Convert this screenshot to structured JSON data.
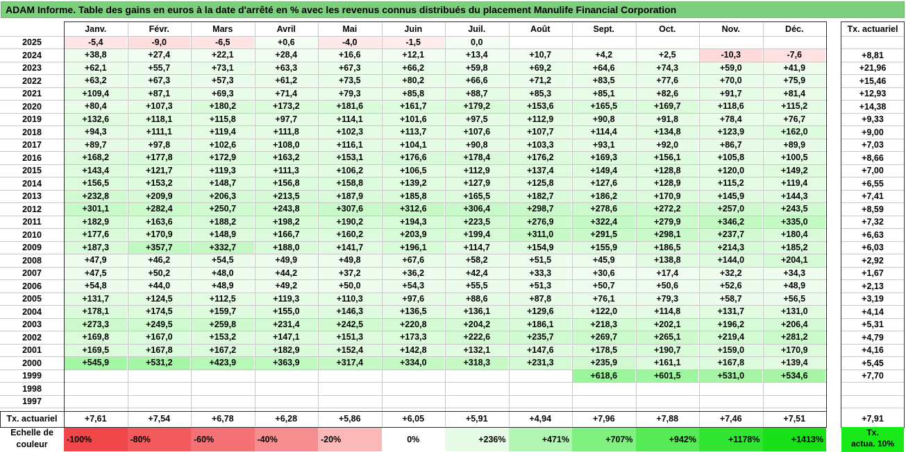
{
  "title": "ADAM Informe. Table des gains en euros à la date d'arrêté en % avec les revenus connus distribués du placement Manulife Financial Corporation",
  "chart_data": {
    "type": "table",
    "months": [
      "Janv.",
      "Févr.",
      "Mars",
      "Avril",
      "Mai",
      "Juin",
      "Juil.",
      "Août",
      "Sept.",
      "Oct.",
      "Nov.",
      "Déc."
    ],
    "rate_header": "Tx. actuariel",
    "rows": [
      {
        "year": "2025",
        "values": [
          "-5,4",
          "-9,0",
          "-6,5",
          "+0,6",
          "-4,0",
          "-1,5",
          "0,0",
          "",
          "",
          "",
          "",
          ""
        ],
        "rate": ""
      },
      {
        "year": "2024",
        "values": [
          "+38,8",
          "+27,4",
          "+22,1",
          "+28,4",
          "+16,6",
          "+12,1",
          "+13,4",
          "+10,7",
          "+4,2",
          "+2,5",
          "-10,3",
          "-7,6"
        ],
        "rate": "+8,81"
      },
      {
        "year": "2023",
        "values": [
          "+62,1",
          "+55,7",
          "+73,1",
          "+63,3",
          "+67,3",
          "+66,2",
          "+59,8",
          "+69,2",
          "+64,6",
          "+74,3",
          "+59,0",
          "+41,9"
        ],
        "rate": "+21,96"
      },
      {
        "year": "2022",
        "values": [
          "+63,2",
          "+67,3",
          "+57,3",
          "+61,2",
          "+73,5",
          "+80,2",
          "+66,6",
          "+71,2",
          "+83,5",
          "+77,6",
          "+70,0",
          "+75,9"
        ],
        "rate": "+15,46"
      },
      {
        "year": "2021",
        "values": [
          "+109,4",
          "+87,1",
          "+69,3",
          "+71,4",
          "+79,3",
          "+85,8",
          "+88,7",
          "+85,3",
          "+85,1",
          "+82,6",
          "+91,7",
          "+81,4"
        ],
        "rate": "+12,93"
      },
      {
        "year": "2020",
        "values": [
          "+80,4",
          "+107,3",
          "+180,2",
          "+173,2",
          "+181,6",
          "+161,7",
          "+179,2",
          "+153,6",
          "+165,5",
          "+169,7",
          "+118,6",
          "+115,2"
        ],
        "rate": "+14,38"
      },
      {
        "year": "2019",
        "values": [
          "+132,6",
          "+118,1",
          "+115,8",
          "+97,7",
          "+114,1",
          "+101,6",
          "+97,5",
          "+112,9",
          "+90,8",
          "+91,8",
          "+78,4",
          "+76,7"
        ],
        "rate": "+9,33"
      },
      {
        "year": "2018",
        "values": [
          "+94,3",
          "+111,1",
          "+119,4",
          "+111,8",
          "+102,3",
          "+113,7",
          "+107,6",
          "+107,7",
          "+114,4",
          "+134,8",
          "+123,9",
          "+162,0"
        ],
        "rate": "+9,00"
      },
      {
        "year": "2017",
        "values": [
          "+89,7",
          "+97,8",
          "+102,6",
          "+108,0",
          "+116,1",
          "+104,1",
          "+90,8",
          "+103,3",
          "+93,1",
          "+92,0",
          "+86,7",
          "+89,9"
        ],
        "rate": "+7,03"
      },
      {
        "year": "2016",
        "values": [
          "+168,2",
          "+177,8",
          "+172,9",
          "+163,2",
          "+153,1",
          "+176,6",
          "+178,4",
          "+176,2",
          "+169,3",
          "+156,1",
          "+105,8",
          "+100,5"
        ],
        "rate": "+8,66"
      },
      {
        "year": "2015",
        "values": [
          "+143,4",
          "+121,7",
          "+119,3",
          "+111,3",
          "+106,2",
          "+106,5",
          "+112,9",
          "+137,4",
          "+149,4",
          "+128,8",
          "+120,0",
          "+149,2"
        ],
        "rate": "+7,00"
      },
      {
        "year": "2014",
        "values": [
          "+156,5",
          "+153,2",
          "+148,7",
          "+156,8",
          "+158,8",
          "+139,2",
          "+127,9",
          "+125,8",
          "+127,6",
          "+128,9",
          "+115,2",
          "+119,4"
        ],
        "rate": "+6,55"
      },
      {
        "year": "2013",
        "values": [
          "+232,8",
          "+209,9",
          "+206,3",
          "+213,5",
          "+187,9",
          "+185,8",
          "+165,5",
          "+182,7",
          "+186,2",
          "+170,9",
          "+145,9",
          "+144,3"
        ],
        "rate": "+7,41"
      },
      {
        "year": "2012",
        "values": [
          "+301,1",
          "+282,4",
          "+250,7",
          "+243,8",
          "+307,6",
          "+312,6",
          "+306,4",
          "+298,7",
          "+278,6",
          "+272,2",
          "+257,0",
          "+243,5"
        ],
        "rate": "+8,59"
      },
      {
        "year": "2011",
        "values": [
          "+182,9",
          "+163,6",
          "+188,2",
          "+198,2",
          "+190,2",
          "+194,3",
          "+223,5",
          "+276,9",
          "+322,4",
          "+279,9",
          "+346,2",
          "+335,0"
        ],
        "rate": "+7,32"
      },
      {
        "year": "2010",
        "values": [
          "+177,6",
          "+170,9",
          "+148,9",
          "+166,7",
          "+160,2",
          "+203,9",
          "+199,4",
          "+311,0",
          "+291,5",
          "+298,1",
          "+237,7",
          "+180,4"
        ],
        "rate": "+6,63"
      },
      {
        "year": "2009",
        "values": [
          "+187,3",
          "+357,7",
          "+332,7",
          "+188,0",
          "+141,7",
          "+196,1",
          "+114,7",
          "+154,9",
          "+155,9",
          "+186,5",
          "+214,3",
          "+185,2"
        ],
        "rate": "+6,03"
      },
      {
        "year": "2008",
        "values": [
          "+47,9",
          "+46,2",
          "+54,5",
          "+49,9",
          "+49,8",
          "+67,6",
          "+58,2",
          "+51,5",
          "+45,9",
          "+138,8",
          "+144,0",
          "+204,1"
        ],
        "rate": "+2,92"
      },
      {
        "year": "2007",
        "values": [
          "+47,5",
          "+50,2",
          "+48,0",
          "+44,2",
          "+37,2",
          "+36,2",
          "+42,4",
          "+33,3",
          "+30,6",
          "+17,4",
          "+32,2",
          "+34,3"
        ],
        "rate": "+1,67"
      },
      {
        "year": "2006",
        "values": [
          "+54,8",
          "+44,0",
          "+48,9",
          "+49,2",
          "+50,0",
          "+54,3",
          "+55,5",
          "+51,3",
          "+50,7",
          "+50,6",
          "+52,6",
          "+48,9"
        ],
        "rate": "+2,13"
      },
      {
        "year": "2005",
        "values": [
          "+131,7",
          "+124,5",
          "+112,5",
          "+119,3",
          "+110,3",
          "+97,6",
          "+88,6",
          "+87,8",
          "+76,1",
          "+79,3",
          "+58,7",
          "+56,5"
        ],
        "rate": "+3,19"
      },
      {
        "year": "2004",
        "values": [
          "+178,1",
          "+174,5",
          "+159,7",
          "+155,0",
          "+146,3",
          "+136,5",
          "+136,1",
          "+129,6",
          "+122,0",
          "+114,8",
          "+131,7",
          "+131,0"
        ],
        "rate": "+4,14"
      },
      {
        "year": "2003",
        "values": [
          "+273,3",
          "+249,5",
          "+259,8",
          "+231,4",
          "+242,5",
          "+220,8",
          "+204,2",
          "+186,1",
          "+218,3",
          "+202,1",
          "+196,2",
          "+206,4"
        ],
        "rate": "+5,31"
      },
      {
        "year": "2002",
        "values": [
          "+169,8",
          "+167,0",
          "+153,2",
          "+147,1",
          "+151,3",
          "+173,3",
          "+222,6",
          "+235,7",
          "+269,7",
          "+265,1",
          "+219,4",
          "+281,2"
        ],
        "rate": "+4,79"
      },
      {
        "year": "2001",
        "values": [
          "+169,5",
          "+167,8",
          "+167,2",
          "+182,9",
          "+152,4",
          "+142,8",
          "+132,1",
          "+147,6",
          "+178,5",
          "+190,7",
          "+159,0",
          "+170,9"
        ],
        "rate": "+4,16"
      },
      {
        "year": "2000",
        "values": [
          "+545,9",
          "+531,2",
          "+423,9",
          "+363,9",
          "+317,4",
          "+334,0",
          "+318,3",
          "+231,3",
          "+235,9",
          "+161,1",
          "+167,8",
          "+139,4"
        ],
        "rate": "+5,45"
      },
      {
        "year": "1999",
        "values": [
          "",
          "",
          "",
          "",
          "",
          "",
          "",
          "",
          "+618,6",
          "+601,5",
          "+531,0",
          "+534,6"
        ],
        "rate": "+7,70"
      },
      {
        "year": "1998",
        "values": [
          "",
          "",
          "",
          "",
          "",
          "",
          "",
          "",
          "",
          "",
          "",
          ""
        ],
        "rate": ""
      },
      {
        "year": "1997",
        "values": [
          "",
          "",
          "",
          "",
          "",
          "",
          "",
          "",
          "",
          "",
          "",
          ""
        ],
        "rate": ""
      }
    ],
    "footer": {
      "label": "Tx. actuariel",
      "values": [
        "+7,61",
        "+7,54",
        "+6,78",
        "+6,28",
        "+5,86",
        "+6,05",
        "+5,91",
        "+4,94",
        "+7,96",
        "+7,88",
        "+7,46",
        "+7,51"
      ],
      "rate": "+7,91"
    },
    "legend": {
      "label_line1": "Echelle de",
      "label_line2": "couleur",
      "items": [
        {
          "text": "-100%",
          "color": "#f0474a"
        },
        {
          "text": "-80%",
          "color": "#f25a5d"
        },
        {
          "text": "-60%",
          "color": "#f47275"
        },
        {
          "text": "-40%",
          "color": "#f68e90"
        },
        {
          "text": "-20%",
          "color": "#fab8b9"
        },
        {
          "text": "0%",
          "color": "#ffffff"
        },
        {
          "text": "+236%",
          "color": "#e6fce6"
        },
        {
          "text": "+471%",
          "color": "#b3f6b3"
        },
        {
          "text": "+707%",
          "color": "#80f080"
        },
        {
          "text": "+942%",
          "color": "#56ea56"
        },
        {
          "text": "+1178%",
          "color": "#33e533"
        },
        {
          "text": "+1413%",
          "color": "#19e019"
        }
      ],
      "ref_line1": "Tx.",
      "ref_line2": "actua. 10%",
      "ref_color": "#19e819"
    }
  }
}
